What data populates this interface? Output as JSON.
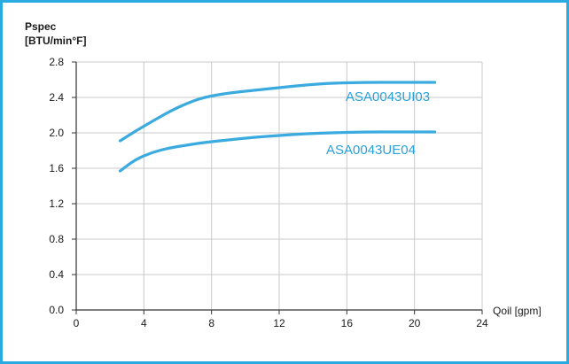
{
  "chart_data": {
    "type": "line",
    "title": "",
    "ylabel_line1": "Pspec",
    "ylabel_line2": "[BTU/min°F]",
    "xlabel": "Qoil [gpm]",
    "xlim": [
      0,
      24
    ],
    "ylim": [
      0.0,
      2.8
    ],
    "xticks": [
      "0",
      "4",
      "8",
      "12",
      "16",
      "20",
      "24"
    ],
    "yticks": [
      "0.0",
      "0.4",
      "0.8",
      "1.2",
      "1.6",
      "2.0",
      "2.4",
      "2.8"
    ],
    "grid": true,
    "line_color": "#3aaadf",
    "series": [
      {
        "name": "ASA0043UI03",
        "x": [
          2.6,
          3.5,
          4.5,
          5.5,
          6.5,
          7.5,
          9,
          10.5,
          12,
          13.5,
          15,
          17,
          19,
          21.2
        ],
        "y": [
          1.91,
          2.02,
          2.13,
          2.24,
          2.33,
          2.4,
          2.45,
          2.48,
          2.51,
          2.54,
          2.56,
          2.57,
          2.57,
          2.57
        ]
      },
      {
        "name": "ASA0043UE04",
        "x": [
          2.6,
          3.5,
          4.5,
          5.5,
          6.5,
          7.5,
          9,
          10.5,
          12,
          13.5,
          15,
          17,
          19,
          21.2
        ],
        "y": [
          1.57,
          1.7,
          1.78,
          1.83,
          1.86,
          1.89,
          1.92,
          1.95,
          1.97,
          1.99,
          2.0,
          2.01,
          2.01,
          2.01
        ]
      }
    ]
  }
}
